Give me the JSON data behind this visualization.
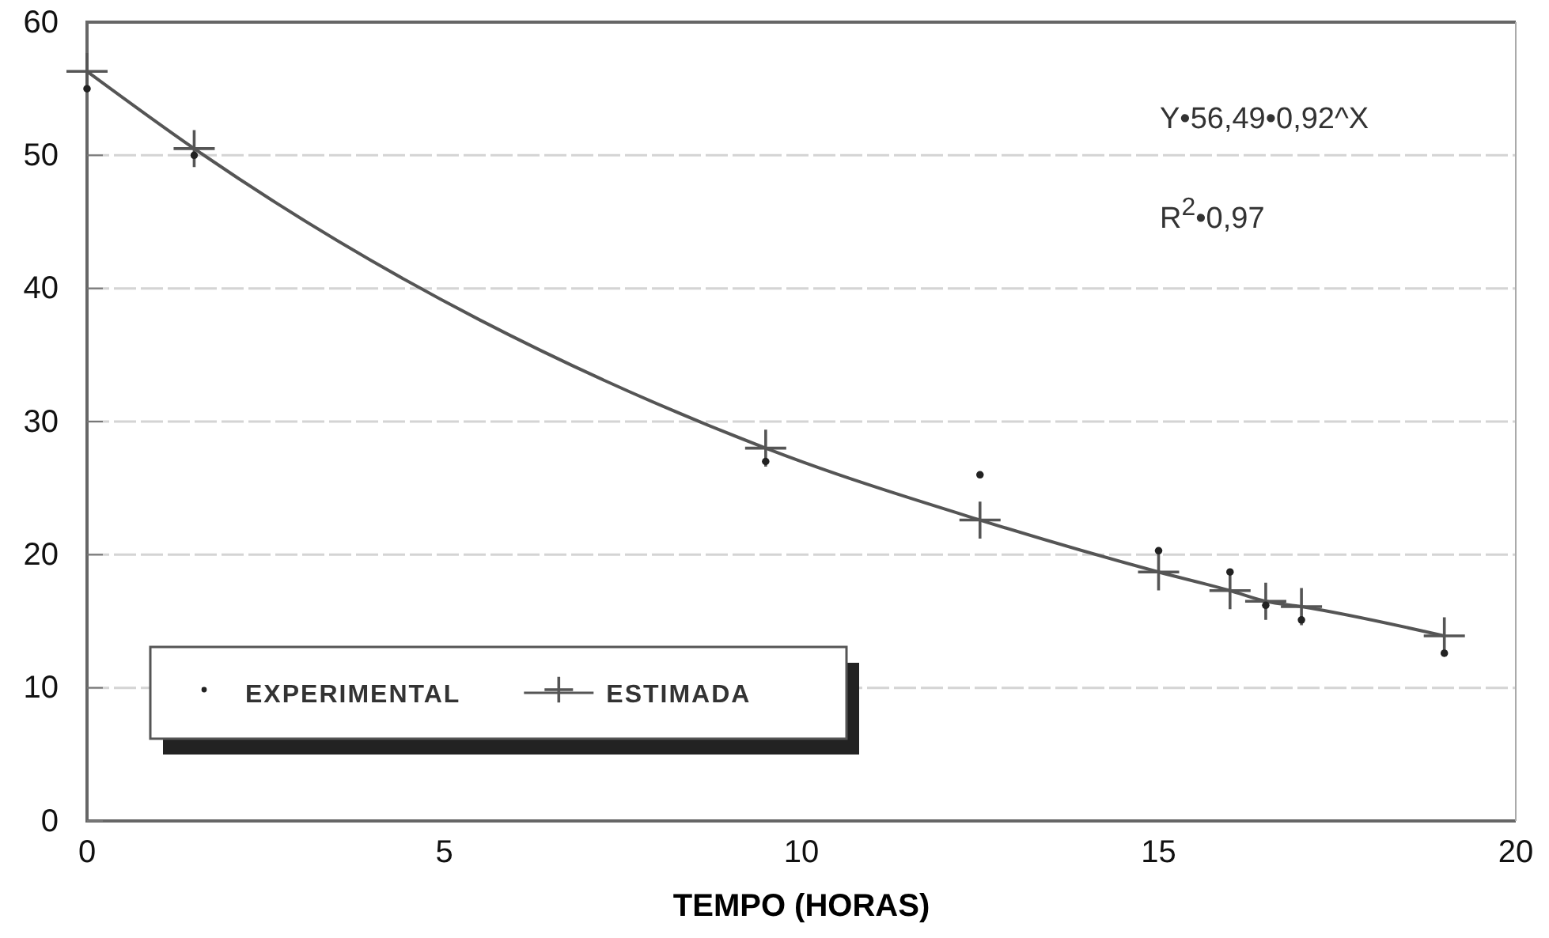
{
  "chart_data": {
    "type": "scatter",
    "xlabel": "TEMPO (HORAS)",
    "xlim": [
      0,
      20
    ],
    "xticks": [
      0,
      5,
      10,
      15,
      20
    ],
    "ylim": [
      0,
      60
    ],
    "yticks": [
      0,
      10,
      20,
      30,
      40,
      50,
      60
    ],
    "grid": "y",
    "legend": "bottom left",
    "annotations": [
      "Y•56,49•0,92^X",
      "R$^{2}$•0,97"
    ],
    "series": [
      {
        "name": "EXPERIMENTAL",
        "marker": "circle",
        "color": "#222222",
        "x": [
          0,
          1.5,
          9.5,
          12.5,
          15,
          16,
          16.5,
          17,
          19
        ],
        "values": [
          55,
          50,
          27,
          26,
          20.3,
          18.7,
          16.2,
          15.1,
          12.6
        ]
      },
      {
        "name": "ESTIMADA",
        "type": "line",
        "marker": "cross",
        "color": "#555555",
        "x": [
          0,
          1.5,
          9.5,
          12.5,
          15,
          16,
          16.5,
          17,
          19
        ],
        "values": [
          56.3,
          50.5,
          28,
          22.6,
          18.7,
          17.3,
          16.5,
          16.1,
          13.9
        ]
      }
    ]
  }
}
